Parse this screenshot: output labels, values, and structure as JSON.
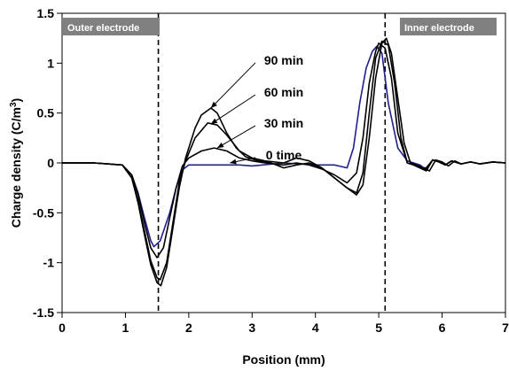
{
  "chart_data": {
    "type": "line",
    "xlabel": "Position (mm)",
    "ylabel": "Charge density (C/m",
    "ylabel_superscript": "3",
    "ylabel_suffix": ")",
    "xlim": [
      0,
      7
    ],
    "ylim": [
      -1.5,
      1.5
    ],
    "x_ticks": [
      0,
      1,
      2,
      3,
      4,
      5,
      6,
      7
    ],
    "x_tick_labels": [
      "0",
      "1",
      "2",
      "3",
      "4",
      "5",
      "6",
      "7"
    ],
    "y_ticks": [
      1.5,
      1,
      0.5,
      0,
      -0.5,
      -1,
      -1.5
    ],
    "y_tick_labels": [
      "1.5",
      "1",
      "0.5",
      "0",
      "-0.5",
      "-1",
      "-1.5"
    ],
    "grid": false,
    "dashed_lines_x": [
      1.52,
      5.1
    ],
    "electrode_labels": {
      "outer": "Outer electrode",
      "inner": "Inner electrode"
    },
    "series": [
      {
        "name": "0 time",
        "color": "#1f1f8f",
        "x": [
          0,
          0.5,
          0.95,
          1.1,
          1.2,
          1.3,
          1.4,
          1.45,
          1.55,
          1.7,
          1.8,
          1.9,
          2.0,
          2.3,
          2.8,
          3.0,
          3.5,
          4.0,
          4.3,
          4.5,
          4.6,
          4.7,
          4.8,
          4.9,
          4.97,
          5.05,
          5.15,
          5.3,
          5.45,
          5.55,
          5.65,
          5.75,
          5.85,
          5.95,
          6.05,
          6.15,
          6.3,
          6.45,
          6.6,
          6.8,
          7.0
        ],
        "y": [
          0,
          0,
          -0.02,
          -0.12,
          -0.3,
          -0.55,
          -0.78,
          -0.84,
          -0.78,
          -0.5,
          -0.25,
          -0.07,
          -0.02,
          -0.02,
          -0.02,
          -0.03,
          0.0,
          -0.02,
          -0.02,
          -0.05,
          0.15,
          0.6,
          0.95,
          1.12,
          1.17,
          1.1,
          0.6,
          0.15,
          0.02,
          0.0,
          -0.02,
          -0.07,
          0.03,
          0.01,
          -0.02,
          0.02,
          -0.01,
          0.01,
          -0.01,
          0.01,
          0
        ]
      },
      {
        "name": "30 min",
        "color": "#000000",
        "x": [
          0,
          0.5,
          0.95,
          1.1,
          1.2,
          1.3,
          1.4,
          1.5,
          1.6,
          1.7,
          1.8,
          1.9,
          2.0,
          2.2,
          2.4,
          2.6,
          2.8,
          3.0,
          3.2,
          3.5,
          3.7,
          3.9,
          4.1,
          4.3,
          4.5,
          4.65,
          4.75,
          4.85,
          4.95,
          5.0,
          5.1,
          5.2,
          5.3,
          5.45,
          5.55,
          5.65,
          5.75,
          5.85,
          5.95,
          6.05,
          6.15,
          6.3,
          6.45,
          6.6,
          6.8,
          7.0
        ],
        "y": [
          0,
          0,
          -0.02,
          -0.12,
          -0.32,
          -0.6,
          -0.85,
          -0.95,
          -0.85,
          -0.55,
          -0.25,
          -0.03,
          0.05,
          0.12,
          0.15,
          0.12,
          0.05,
          0.02,
          0.0,
          -0.02,
          0.0,
          -0.02,
          -0.06,
          -0.12,
          -0.2,
          -0.1,
          0.25,
          0.8,
          1.12,
          1.2,
          1.15,
          0.85,
          0.3,
          0.0,
          -0.02,
          -0.05,
          -0.05,
          0.03,
          0.01,
          -0.02,
          0.02,
          -0.01,
          0.01,
          -0.01,
          0.01,
          0
        ]
      },
      {
        "name": "60 min",
        "color": "#000000",
        "x": [
          0,
          0.5,
          0.95,
          1.1,
          1.2,
          1.3,
          1.4,
          1.5,
          1.55,
          1.65,
          1.75,
          1.85,
          1.95,
          2.1,
          2.3,
          2.45,
          2.6,
          2.8,
          3.0,
          3.2,
          3.5,
          3.7,
          3.9,
          4.1,
          4.3,
          4.5,
          4.65,
          4.75,
          4.85,
          4.95,
          5.05,
          5.15,
          5.25,
          5.35,
          5.45,
          5.55,
          5.65,
          5.75,
          5.85,
          5.95,
          6.05,
          6.15,
          6.3,
          6.45,
          6.6,
          6.8,
          7.0
        ],
        "y": [
          0,
          0,
          -0.02,
          -0.15,
          -0.38,
          -0.68,
          -0.98,
          -1.15,
          -1.17,
          -1.0,
          -0.6,
          -0.2,
          0.02,
          0.25,
          0.4,
          0.38,
          0.28,
          0.12,
          0.05,
          0.02,
          0.0,
          0.05,
          0.02,
          -0.05,
          -0.15,
          -0.25,
          -0.3,
          -0.1,
          0.5,
          1.05,
          1.22,
          1.18,
          0.8,
          0.25,
          0.0,
          -0.02,
          -0.05,
          -0.08,
          0.03,
          0.01,
          -0.02,
          0.02,
          -0.01,
          0.01,
          -0.01,
          0.01,
          0
        ]
      },
      {
        "name": "90 min",
        "color": "#000000",
        "x": [
          0,
          0.5,
          0.95,
          1.1,
          1.2,
          1.3,
          1.4,
          1.5,
          1.56,
          1.65,
          1.75,
          1.85,
          1.95,
          2.1,
          2.2,
          2.35,
          2.45,
          2.6,
          2.75,
          2.9,
          3.1,
          3.3,
          3.5,
          3.7,
          3.9,
          4.1,
          4.3,
          4.5,
          4.65,
          4.75,
          4.85,
          4.95,
          5.05,
          5.12,
          5.2,
          5.3,
          5.4,
          5.5,
          5.6,
          5.7,
          5.8,
          5.9,
          6.0,
          6.1,
          6.2,
          6.3,
          6.45,
          6.6,
          6.8,
          7.0
        ],
        "y": [
          0,
          0,
          -0.02,
          -0.15,
          -0.4,
          -0.72,
          -1.02,
          -1.2,
          -1.23,
          -1.05,
          -0.65,
          -0.25,
          0.05,
          0.35,
          0.48,
          0.55,
          0.5,
          0.3,
          0.15,
          0.06,
          0.02,
          0.0,
          -0.05,
          -0.02,
          0.0,
          -0.05,
          -0.15,
          -0.25,
          -0.32,
          -0.22,
          0.25,
          0.85,
          1.2,
          1.25,
          1.1,
          0.65,
          0.2,
          0.0,
          -0.02,
          -0.05,
          -0.08,
          0.03,
          0.01,
          -0.03,
          0.02,
          -0.01,
          0.01,
          -0.01,
          0.01,
          0
        ]
      }
    ],
    "annotations": [
      {
        "text": "90 min",
        "label_x": 3.5,
        "label_y": 1.03,
        "target_x": 2.35,
        "target_y": 0.55
      },
      {
        "text": "60 min",
        "label_x": 3.5,
        "label_y": 0.71,
        "target_x": 2.35,
        "target_y": 0.39
      },
      {
        "text": "30 min",
        "label_x": 3.5,
        "label_y": 0.4,
        "target_x": 2.45,
        "target_y": 0.15
      },
      {
        "text": "0 time",
        "label_x": 3.5,
        "label_y": 0.08,
        "target_x": 2.65,
        "target_y": 0.0
      }
    ]
  }
}
